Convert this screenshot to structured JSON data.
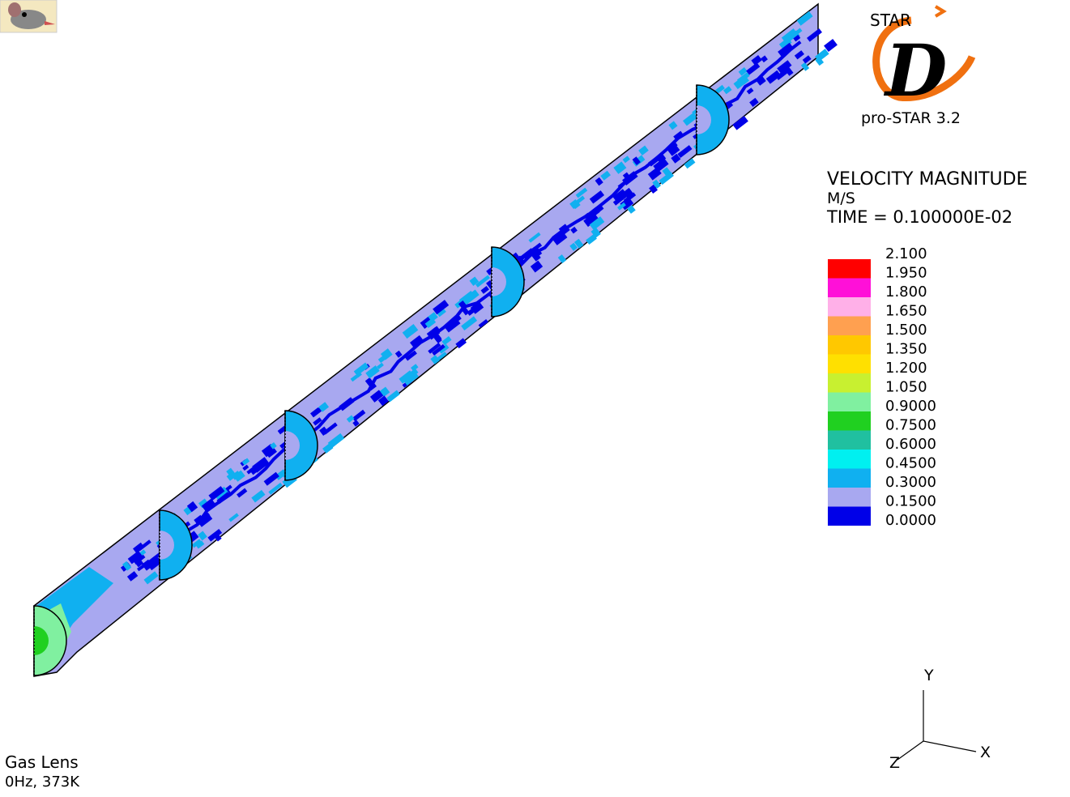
{
  "logo": {
    "brand": "STAR",
    "letter": "D",
    "product": "pro-STAR 3.2"
  },
  "legend": {
    "title": "VELOCITY MAGNITUDE",
    "unit": "M/S",
    "time": "TIME = 0.100000E-02",
    "levels": [
      "2.100",
      "1.950",
      "1.800",
      "1.650",
      "1.500",
      "1.350",
      "1.200",
      "1.050",
      "0.9000",
      "0.7500",
      "0.6000",
      "0.4500",
      "0.3000",
      "0.1500",
      "0.0000"
    ],
    "colors": [
      "#ff0000",
      "#ff10d8",
      "#ffb0e8",
      "#ffa050",
      "#ffc800",
      "#ffe000",
      "#c8f030",
      "#80f0a0",
      "#20d020",
      "#20c0a0",
      "#00f0f0",
      "#10b0f0",
      "#a8a8f0",
      "#0000e8"
    ]
  },
  "axes": {
    "y": "Y",
    "x": "X",
    "z": "Z"
  },
  "caption": {
    "line1": "Gas Lens",
    "line2": "0Hz, 373K"
  }
}
